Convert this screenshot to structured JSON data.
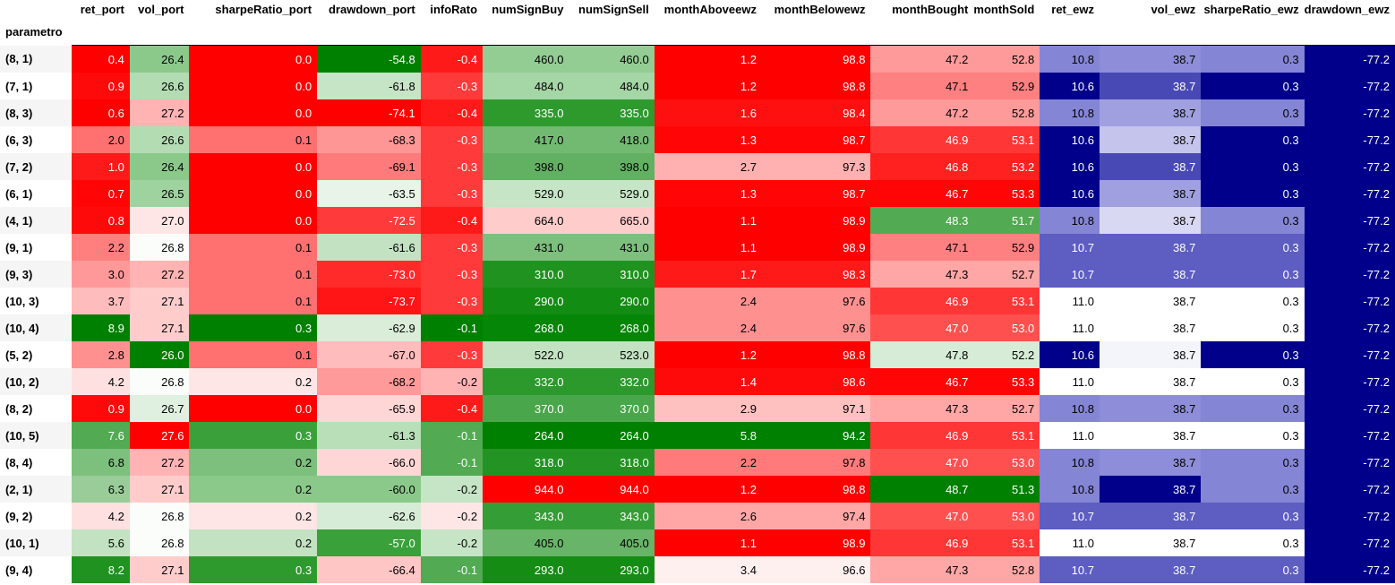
{
  "index_name": "parametro",
  "columns": [
    "ret_port",
    "vol_port",
    "sharpeRatio_port",
    "drawdown_port",
    "infoRato",
    "numSignBuy",
    "numSignSell",
    "monthAboveewz",
    "monthBelowewz",
    "monthBought",
    "monthSold",
    "ret_ewz",
    "vol_ewz",
    "sharpeRatio_ewz",
    "drawdown_ewz"
  ],
  "rows": [
    {
      "label": "(8, 1)",
      "values": [
        "0.4",
        "26.4",
        "0.0",
        "-54.8",
        "-0.4",
        "460.0",
        "460.0",
        "1.2",
        "98.8",
        "47.2",
        "52.8",
        "10.8",
        "38.7",
        "0.3",
        "-77.2"
      ],
      "colors": [
        "#ff0000",
        "#8bc98b",
        "#ff0000",
        "#008000",
        "#ff1a1a",
        "#93cd93",
        "#93cd93",
        "#ff0000",
        "#ff0000",
        "#ff9a9a",
        "#ff9a9a",
        "#8585d6",
        "#8d8dd9",
        "#8585d6",
        "#00008b"
      ]
    },
    {
      "label": "(7, 1)",
      "values": [
        "0.9",
        "26.6",
        "0.0",
        "-61.8",
        "-0.3",
        "484.0",
        "484.0",
        "1.2",
        "98.8",
        "47.1",
        "52.9",
        "10.6",
        "38.7",
        "0.3",
        "-77.2"
      ],
      "colors": [
        "#ff0a0a",
        "#b3dcb3",
        "#ff0000",
        "#c6e4c6",
        "#ff3a3a",
        "#a5d6a5",
        "#a5d6a5",
        "#ff0000",
        "#ff0000",
        "#ff8080",
        "#ff8080",
        "#00008b",
        "#4949b5",
        "#00008b",
        "#00008b"
      ]
    },
    {
      "label": "(8, 3)",
      "values": [
        "0.6",
        "27.2",
        "0.0",
        "-74.1",
        "-0.4",
        "335.0",
        "335.0",
        "1.6",
        "98.4",
        "47.2",
        "52.8",
        "10.8",
        "38.7",
        "0.3",
        "-77.2"
      ],
      "colors": [
        "#ff0000",
        "#ffb3b3",
        "#ff0000",
        "#ff0000",
        "#ff1a1a",
        "#2e9a2e",
        "#2e9a2e",
        "#ff1010",
        "#ff1010",
        "#ff9a9a",
        "#ff9a9a",
        "#8585d6",
        "#a0a0e0",
        "#8585d6",
        "#00008b"
      ]
    },
    {
      "label": "(6, 3)",
      "values": [
        "2.0",
        "26.6",
        "0.1",
        "-68.3",
        "-0.3",
        "417.0",
        "418.0",
        "1.3",
        "98.7",
        "46.9",
        "53.1",
        "10.6",
        "38.7",
        "0.3",
        "-77.2"
      ],
      "colors": [
        "#ff7070",
        "#b3dcb3",
        "#ff7070",
        "#ff9696",
        "#ff3a3a",
        "#72b972",
        "#72b972",
        "#ff0505",
        "#ff0505",
        "#ff3636",
        "#ff3636",
        "#00008b",
        "#c4c4ec",
        "#00008b",
        "#00008b"
      ]
    },
    {
      "label": "(7, 2)",
      "values": [
        "1.0",
        "26.4",
        "0.0",
        "-69.1",
        "-0.3",
        "398.0",
        "398.0",
        "2.7",
        "97.3",
        "46.8",
        "53.2",
        "10.6",
        "38.7",
        "0.3",
        "-77.2"
      ],
      "colors": [
        "#ff1a1a",
        "#8bc98b",
        "#ff0000",
        "#ff7a7a",
        "#ff3a3a",
        "#62b162",
        "#62b162",
        "#ffb0b0",
        "#ffb0b0",
        "#ff2020",
        "#ff2020",
        "#00008b",
        "#4949b5",
        "#00008b",
        "#00008b"
      ]
    },
    {
      "label": "(6, 1)",
      "values": [
        "0.7",
        "26.5",
        "0.0",
        "-63.5",
        "-0.3",
        "529.0",
        "529.0",
        "1.3",
        "98.7",
        "46.7",
        "53.3",
        "10.6",
        "38.7",
        "0.3",
        "-77.2"
      ],
      "colors": [
        "#ff0505",
        "#9ed29e",
        "#ff0000",
        "#e8f4e8",
        "#ff3a3a",
        "#c6e4c6",
        "#c6e4c6",
        "#ff0505",
        "#ff0505",
        "#ff0505",
        "#ff0505",
        "#00008b",
        "#a0a0e0",
        "#00008b",
        "#00008b"
      ]
    },
    {
      "label": "(4, 1)",
      "values": [
        "0.8",
        "27.0",
        "0.0",
        "-72.5",
        "-0.4",
        "664.0",
        "665.0",
        "1.1",
        "98.9",
        "48.3",
        "51.7",
        "10.8",
        "38.7",
        "0.3",
        "-77.2"
      ],
      "colors": [
        "#ff0a0a",
        "#ffe6e6",
        "#ff0000",
        "#ff3a3a",
        "#ff1a1a",
        "#ffcccc",
        "#ffcccc",
        "#ff0000",
        "#ff0000",
        "#52aa52",
        "#52aa52",
        "#8585d6",
        "#d8d8f2",
        "#8585d6",
        "#00008b"
      ]
    },
    {
      "label": "(9, 1)",
      "values": [
        "2.2",
        "26.8",
        "0.1",
        "-61.6",
        "-0.3",
        "431.0",
        "431.0",
        "1.1",
        "98.9",
        "47.1",
        "52.9",
        "10.7",
        "38.7",
        "0.3",
        "-77.2"
      ],
      "colors": [
        "#ff7f7f",
        "#fbfdfb",
        "#ff7070",
        "#c2e2c2",
        "#ff3a3a",
        "#7dbf7d",
        "#7dbf7d",
        "#ff0000",
        "#ff0000",
        "#ff8080",
        "#ff8080",
        "#5d5dc2",
        "#5d5dc2",
        "#5d5dc2",
        "#00008b"
      ]
    },
    {
      "label": "(9, 3)",
      "values": [
        "3.0",
        "27.2",
        "0.1",
        "-73.0",
        "-0.3",
        "310.0",
        "310.0",
        "1.7",
        "98.3",
        "47.3",
        "52.7",
        "10.7",
        "38.7",
        "0.3",
        "-77.2"
      ],
      "colors": [
        "#ff9999",
        "#ffb3b3",
        "#ff7070",
        "#ff2a2a",
        "#ff3a3a",
        "#1f921f",
        "#1f921f",
        "#ff1a1a",
        "#ff1a1a",
        "#ffa6a6",
        "#ffa6a6",
        "#5d5dc2",
        "#5d5dc2",
        "#5d5dc2",
        "#00008b"
      ]
    },
    {
      "label": "(10, 3)",
      "values": [
        "3.7",
        "27.1",
        "0.1",
        "-73.7",
        "-0.3",
        "290.0",
        "290.0",
        "2.4",
        "97.6",
        "46.9",
        "53.1",
        "11.0",
        "38.7",
        "0.3",
        "-77.2"
      ],
      "colors": [
        "#ffbcbc",
        "#ffcccc",
        "#ff7070",
        "#ff1515",
        "#ff3a3a",
        "#138c13",
        "#138c13",
        "#ff9090",
        "#ff9090",
        "#ff3636",
        "#ff3636",
        "#ffffff",
        "#ffffff",
        "#ffffff",
        "#00008b"
      ]
    },
    {
      "label": "(10, 4)",
      "values": [
        "8.9",
        "27.1",
        "0.3",
        "-62.9",
        "-0.1",
        "268.0",
        "268.0",
        "2.4",
        "97.6",
        "47.0",
        "53.0",
        "11.0",
        "38.7",
        "0.3",
        "-77.2"
      ],
      "colors": [
        "#008000",
        "#ffcccc",
        "#008000",
        "#d9edd9",
        "#008000",
        "#068606",
        "#068606",
        "#ff9090",
        "#ff9090",
        "#ff5050",
        "#ff5050",
        "#ffffff",
        "#ffffff",
        "#ffffff",
        "#00008b"
      ]
    },
    {
      "label": "(5, 2)",
      "values": [
        "2.8",
        "26.0",
        "0.1",
        "-67.0",
        "-0.3",
        "522.0",
        "523.0",
        "1.2",
        "98.8",
        "47.8",
        "52.2",
        "10.6",
        "38.7",
        "0.3",
        "-77.2"
      ],
      "colors": [
        "#ff9090",
        "#008000",
        "#ff7070",
        "#ffbcbc",
        "#ff3a3a",
        "#c2e2c2",
        "#c2e2c2",
        "#ff0000",
        "#ff0000",
        "#d6ecd6",
        "#d6ecd6",
        "#00008b",
        "#f4f4fb",
        "#00008b",
        "#00008b"
      ]
    },
    {
      "label": "(10, 2)",
      "values": [
        "4.2",
        "26.8",
        "0.2",
        "-68.2",
        "-0.2",
        "332.0",
        "332.0",
        "1.4",
        "98.6",
        "46.7",
        "53.3",
        "11.0",
        "38.7",
        "0.3",
        "-77.2"
      ],
      "colors": [
        "#ffe0e0",
        "#fbfdfb",
        "#ffe6e6",
        "#ff9a9a",
        "#ffb3b3",
        "#2c992c",
        "#2c992c",
        "#ff0a0a",
        "#ff0a0a",
        "#ff0505",
        "#ff0505",
        "#ffffff",
        "#ffffff",
        "#ffffff",
        "#00008b"
      ]
    },
    {
      "label": "(8, 2)",
      "values": [
        "0.9",
        "26.7",
        "0.0",
        "-65.9",
        "-0.4",
        "370.0",
        "370.0",
        "2.9",
        "97.1",
        "47.3",
        "52.7",
        "10.8",
        "38.7",
        "0.3",
        "-77.2"
      ],
      "colors": [
        "#ff0a0a",
        "#e0f0e0",
        "#ff0000",
        "#ffd6d6",
        "#ff1a1a",
        "#4aa64a",
        "#4aa64a",
        "#ffc0c0",
        "#ffc0c0",
        "#ffa6a6",
        "#ffa6a6",
        "#8585d6",
        "#8d8dd9",
        "#8585d6",
        "#00008b"
      ]
    },
    {
      "label": "(10, 5)",
      "values": [
        "7.6",
        "27.6",
        "0.3",
        "-61.3",
        "-0.1",
        "264.0",
        "264.0",
        "5.8",
        "94.2",
        "46.9",
        "53.1",
        "11.0",
        "38.7",
        "0.3",
        "-77.2"
      ],
      "colors": [
        "#52aa52",
        "#ff0000",
        "#3aa13a",
        "#b8dfb8",
        "#52aa52",
        "#008000",
        "#008000",
        "#008000",
        "#008000",
        "#ff3636",
        "#ff3636",
        "#ffffff",
        "#ffffff",
        "#ffffff",
        "#00008b"
      ]
    },
    {
      "label": "(8, 4)",
      "values": [
        "6.8",
        "27.2",
        "0.2",
        "-66.0",
        "-0.1",
        "318.0",
        "318.0",
        "2.2",
        "97.8",
        "47.0",
        "53.0",
        "10.8",
        "38.7",
        "0.3",
        "-77.2"
      ],
      "colors": [
        "#7dbf7d",
        "#ffb3b3",
        "#7dbf7d",
        "#ffd6d6",
        "#52aa52",
        "#239423",
        "#239423",
        "#ff7a7a",
        "#ff7a7a",
        "#ff5050",
        "#ff5050",
        "#8585d6",
        "#8d8dd9",
        "#8585d6",
        "#00008b"
      ]
    },
    {
      "label": "(2, 1)",
      "values": [
        "6.3",
        "27.1",
        "0.2",
        "-60.0",
        "-0.2",
        "944.0",
        "944.0",
        "1.2",
        "98.8",
        "48.7",
        "51.3",
        "10.8",
        "38.7",
        "0.3",
        "-77.2"
      ],
      "colors": [
        "#99cc99",
        "#ffcccc",
        "#8bc98b",
        "#8bc98b",
        "#c6e4c6",
        "#ff0000",
        "#ff0000",
        "#ff0000",
        "#ff0000",
        "#008000",
        "#008000",
        "#8585d6",
        "#00008b",
        "#8585d6",
        "#00008b"
      ]
    },
    {
      "label": "(9, 2)",
      "values": [
        "4.2",
        "26.8",
        "0.2",
        "-62.6",
        "-0.2",
        "343.0",
        "343.0",
        "2.6",
        "97.4",
        "47.0",
        "53.0",
        "10.7",
        "38.7",
        "0.3",
        "-77.2"
      ],
      "colors": [
        "#ffe0e0",
        "#fbfdfb",
        "#ffe6e6",
        "#d6ecd6",
        "#ffe6e6",
        "#359d35",
        "#359d35",
        "#ffa6a6",
        "#ffa6a6",
        "#ff5050",
        "#ff5050",
        "#5d5dc2",
        "#5d5dc2",
        "#5d5dc2",
        "#00008b"
      ]
    },
    {
      "label": "(10, 1)",
      "values": [
        "5.6",
        "26.8",
        "0.2",
        "-57.0",
        "-0.2",
        "405.0",
        "405.0",
        "1.1",
        "98.9",
        "46.9",
        "53.1",
        "11.0",
        "38.7",
        "0.3",
        "-77.2"
      ],
      "colors": [
        "#c2e2c2",
        "#fbfdfb",
        "#c2e2c2",
        "#3aa13a",
        "#c6e4c6",
        "#68b468",
        "#68b468",
        "#ff0000",
        "#ff0000",
        "#ff3636",
        "#ff3636",
        "#ffffff",
        "#ffffff",
        "#ffffff",
        "#00008b"
      ]
    },
    {
      "label": "(9, 4)",
      "values": [
        "8.2",
        "27.1",
        "0.3",
        "-66.4",
        "-0.1",
        "293.0",
        "293.0",
        "3.4",
        "96.6",
        "47.3",
        "52.8",
        "10.7",
        "38.7",
        "0.3",
        "-77.2"
      ],
      "colors": [
        "#1f921f",
        "#ffcccc",
        "#2e9a2e",
        "#ffc6c6",
        "#52aa52",
        "#158d15",
        "#158d15",
        "#fff0f0",
        "#fff0f0",
        "#ffa6a6",
        "#ffa6a6",
        "#5d5dc2",
        "#5d5dc2",
        "#5d5dc2",
        "#00008b"
      ]
    }
  ]
}
